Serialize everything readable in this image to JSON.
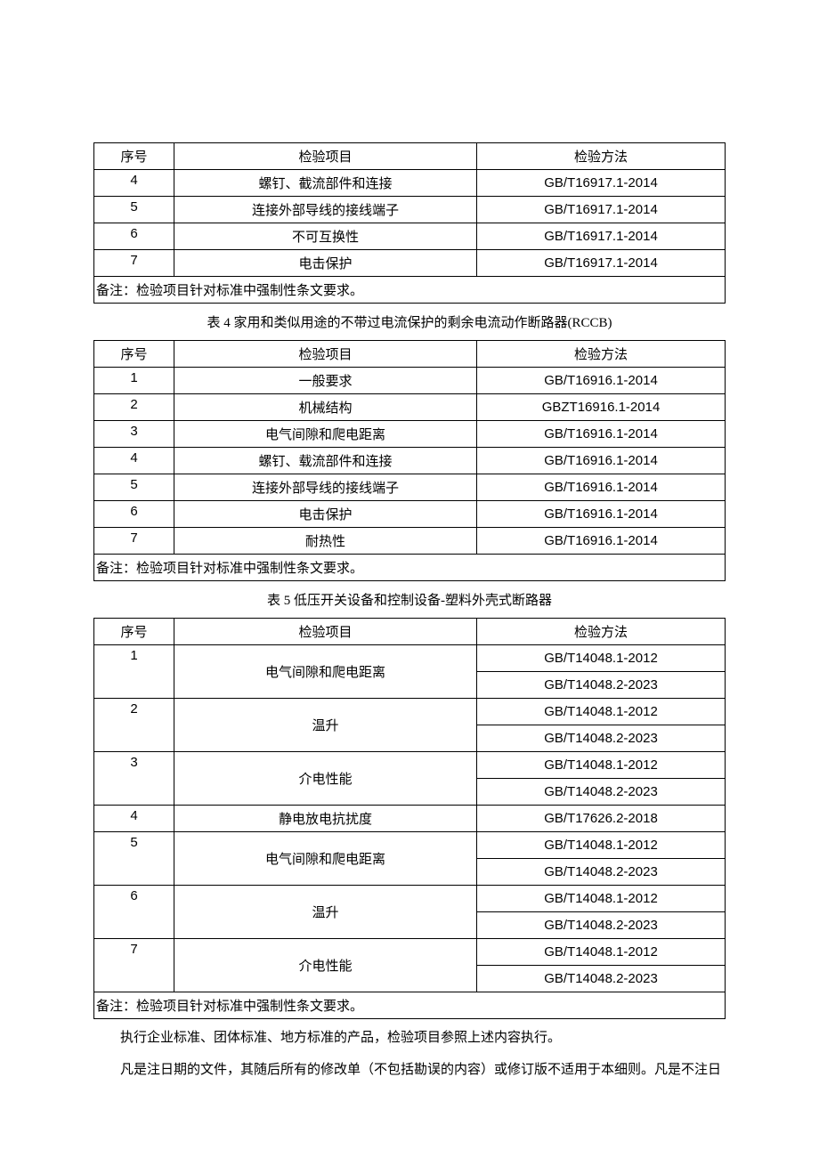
{
  "tableA": {
    "headers": {
      "seq": "序号",
      "item": "检验项目",
      "method": "检验方法"
    },
    "rows": [
      {
        "seq": "4",
        "item": "螺钉、截流部件和连接",
        "method": "GB/T16917.1-2014"
      },
      {
        "seq": "5",
        "item": "连接外部导线的接线端子",
        "method": "GB/T16917.1-2014"
      },
      {
        "seq": "6",
        "item": "不可互换性",
        "method": "GB/T16917.1-2014"
      },
      {
        "seq": "7",
        "item": "电击保护",
        "method": "GB/T16917.1-2014"
      }
    ],
    "note": "备注：检验项目针对标准中强制性条文要求。"
  },
  "caption4": "表 4 家用和类似用途的不带过电流保护的剩余电流动作断路器(RCCB)",
  "table4": {
    "headers": {
      "seq": "序号",
      "item": "检验项目",
      "method": "检验方法"
    },
    "rows": [
      {
        "seq": "1",
        "item": "一般要求",
        "method": "GB/T16916.1-2014"
      },
      {
        "seq": "2",
        "item": "机械结构",
        "method": "GBZT16916.1-2014"
      },
      {
        "seq": "3",
        "item": "电气间隙和爬电距离",
        "method": "GB/T16916.1-2014"
      },
      {
        "seq": "4",
        "item": "螺钉、载流部件和连接",
        "method": "GB/T16916.1-2014"
      },
      {
        "seq": "5",
        "item": "连接外部导线的接线端子",
        "method": "GB/T16916.1-2014"
      },
      {
        "seq": "6",
        "item": "电击保护",
        "method": "GB/T16916.1-2014"
      },
      {
        "seq": "7",
        "item": "耐热性",
        "method": "GB/T16916.1-2014"
      }
    ],
    "note": "备注：检验项目针对标准中强制性条文要求。"
  },
  "caption5": "表 5 低压开关设备和控制设备-塑料外壳式断路器",
  "table5": {
    "headers": {
      "seq": "序号",
      "item": "检验项目",
      "method": "检验方法"
    },
    "rows": [
      {
        "seq": "1",
        "item": "电气间隙和爬电距离",
        "methods": [
          "GB/T14048.1-2012",
          "GB/T14048.2-2023"
        ]
      },
      {
        "seq": "2",
        "item": "温升",
        "methods": [
          "GB/T14048.1-2012",
          "GB/T14048.2-2023"
        ]
      },
      {
        "seq": "3",
        "item": "介电性能",
        "methods": [
          "GB/T14048.1-2012",
          "GB/T14048.2-2023"
        ]
      },
      {
        "seq": "4",
        "item": "静电放电抗扰度",
        "methods": [
          "GB/T17626.2-2018"
        ]
      },
      {
        "seq": "5",
        "item": "电气间隙和爬电距离",
        "methods": [
          "GB/T14048.1-2012",
          "GB/T14048.2-2023"
        ]
      },
      {
        "seq": "6",
        "item": "温升",
        "methods": [
          "GB/T14048.1-2012",
          "GB/T14048.2-2023"
        ]
      },
      {
        "seq": "7",
        "item": "介电性能",
        "methods": [
          "GB/T14048.1-2012",
          "GB/T14048.2-2023"
        ]
      }
    ],
    "note": "备注：检验项目针对标准中强制性条文要求。"
  },
  "para1": "执行企业标准、团体标准、地方标准的产品，检验项目参照上述内容执行。",
  "para2": "凡是注日期的文件，其随后所有的修改单（不包括勘误的内容）或修订版不适用于本细则。凡是不注日"
}
